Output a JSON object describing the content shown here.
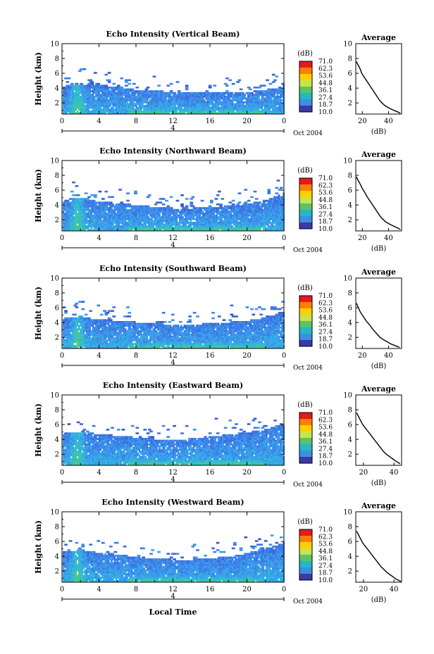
{
  "figure": {
    "footer_label": "Local Time",
    "x_ticks": [
      "0",
      "4",
      "8",
      "12",
      "16",
      "20",
      "0"
    ],
    "date_label": "Oct 2004",
    "day_marker": "4",
    "height_axis_label": "Height (km)",
    "height_ticks": [
      "2",
      "4",
      "6",
      "8",
      "10"
    ],
    "cbar_unit": "(dB)",
    "cbar_values": [
      "71.0",
      "62.3",
      "53.6",
      "44.8",
      "36.1",
      "27.4",
      "18.7",
      "10.0"
    ],
    "cbar_colors": [
      "#e41a1c",
      "#ff7f00",
      "#fed000",
      "#c7e44a",
      "#5cc26a",
      "#22b8c8",
      "#3f8fe0",
      "#3a3aa8"
    ],
    "average_title": "Average",
    "average_unit": "(dB)",
    "color_scale": [
      {
        "v": 10,
        "c": "#2a35a8"
      },
      {
        "v": 20,
        "c": "#3f6fe0"
      },
      {
        "v": 27,
        "c": "#3aa0f0"
      },
      {
        "v": 33,
        "c": "#2fc2cc"
      },
      {
        "v": 39,
        "c": "#55c96e"
      },
      {
        "v": 45,
        "c": "#b9e04c"
      },
      {
        "v": 53,
        "c": "#fed22a"
      },
      {
        "v": 62,
        "c": "#ff8a1c"
      },
      {
        "v": 71,
        "c": "#e41a1c"
      }
    ]
  },
  "chart_data": [
    {
      "type": "heatmap",
      "title": "Echo Intensity (Vertical Beam)",
      "xlabel": "",
      "ylabel": "Height (km)",
      "xlim": [
        0,
        24
      ],
      "ylim": [
        0.5,
        10
      ],
      "clim": [
        10,
        71
      ],
      "echo_top_km": [
        [
          0,
          4.4
        ],
        [
          1,
          4.6
        ],
        [
          2,
          4.7
        ],
        [
          3,
          4.5
        ],
        [
          4,
          4.5
        ],
        [
          6,
          4.3
        ],
        [
          8,
          3.9
        ],
        [
          10,
          3.8
        ],
        [
          12,
          3.6
        ],
        [
          14,
          3.5
        ],
        [
          16,
          3.6
        ],
        [
          18,
          3.5
        ],
        [
          20,
          3.6
        ],
        [
          22,
          3.9
        ],
        [
          24,
          4.5
        ]
      ],
      "average_profile": {
        "xlabel": "(dB)",
        "ylabel": "",
        "x_ticks": [
          "20",
          "40"
        ],
        "xlim": [
          15,
          50
        ],
        "ylim": [
          0.5,
          10
        ],
        "points": [
          [
            15.3,
            7.6
          ],
          [
            16.5,
            7.2
          ],
          [
            17.5,
            6.9
          ],
          [
            18.5,
            6.5
          ],
          [
            19.5,
            6.0
          ],
          [
            21.0,
            5.6
          ],
          [
            22.5,
            5.2
          ],
          [
            24.0,
            4.8
          ],
          [
            25.5,
            4.4
          ],
          [
            27.0,
            4.0
          ],
          [
            28.5,
            3.6
          ],
          [
            30.0,
            3.2
          ],
          [
            31.5,
            2.8
          ],
          [
            33.0,
            2.4
          ],
          [
            35.0,
            2.0
          ],
          [
            37.5,
            1.6
          ],
          [
            40.5,
            1.3
          ],
          [
            44.0,
            1.0
          ],
          [
            47.5,
            0.75
          ],
          [
            49.0,
            0.6
          ]
        ]
      }
    },
    {
      "type": "heatmap",
      "title": "Echo Intensity (Northward Beam)",
      "xlabel": "",
      "ylabel": "Height (km)",
      "xlim": [
        0,
        24
      ],
      "ylim": [
        0.5,
        10
      ],
      "clim": [
        10,
        71
      ],
      "echo_top_km": [
        [
          0,
          4.8
        ],
        [
          1,
          5.0
        ],
        [
          2,
          5.1
        ],
        [
          3,
          4.8
        ],
        [
          4,
          4.6
        ],
        [
          6,
          4.4
        ],
        [
          8,
          4.1
        ],
        [
          10,
          3.9
        ],
        [
          12,
          3.7
        ],
        [
          14,
          3.7
        ],
        [
          16,
          3.9
        ],
        [
          18,
          4.0
        ],
        [
          20,
          4.3
        ],
        [
          22,
          4.8
        ],
        [
          24,
          5.8
        ]
      ],
      "average_profile": {
        "xlabel": "(dB)",
        "ylabel": "",
        "x_ticks": [
          "20",
          "40"
        ],
        "xlim": [
          15,
          50
        ],
        "ylim": [
          0.5,
          10
        ],
        "points": [
          [
            15.5,
            7.8
          ],
          [
            16.5,
            7.4
          ],
          [
            17.8,
            7.0
          ],
          [
            19.0,
            6.6
          ],
          [
            20.0,
            6.2
          ],
          [
            21.5,
            5.8
          ],
          [
            23.0,
            5.3
          ],
          [
            24.5,
            4.9
          ],
          [
            26.0,
            4.5
          ],
          [
            27.5,
            4.1
          ],
          [
            29.0,
            3.7
          ],
          [
            30.5,
            3.3
          ],
          [
            32.0,
            2.9
          ],
          [
            33.5,
            2.5
          ],
          [
            35.5,
            2.1
          ],
          [
            38.0,
            1.7
          ],
          [
            41.0,
            1.4
          ],
          [
            44.5,
            1.1
          ],
          [
            47.5,
            0.85
          ],
          [
            49.0,
            0.7
          ]
        ]
      }
    },
    {
      "type": "heatmap",
      "title": "Echo Intensity (Southward Beam)",
      "xlabel": "",
      "ylabel": "Height (km)",
      "xlim": [
        0,
        24
      ],
      "ylim": [
        0.5,
        10
      ],
      "clim": [
        10,
        71
      ],
      "echo_top_km": [
        [
          0,
          4.6
        ],
        [
          1,
          4.8
        ],
        [
          2,
          5.0
        ],
        [
          3,
          4.7
        ],
        [
          4,
          4.5
        ],
        [
          6,
          4.4
        ],
        [
          8,
          4.2
        ],
        [
          10,
          4.0
        ],
        [
          12,
          3.9
        ],
        [
          14,
          3.9
        ],
        [
          16,
          4.0
        ],
        [
          18,
          4.1
        ],
        [
          20,
          4.4
        ],
        [
          22,
          4.8
        ],
        [
          24,
          5.6
        ]
      ],
      "average_profile": {
        "xlabel": "(dB)",
        "ylabel": "",
        "x_ticks": [
          "20",
          "40"
        ],
        "xlim": [
          15,
          50
        ],
        "ylim": [
          0.5,
          10
        ],
        "points": [
          [
            15.5,
            6.6
          ],
          [
            16.5,
            6.2
          ],
          [
            17.5,
            5.8
          ],
          [
            18.5,
            5.4
          ],
          [
            20.0,
            5.0
          ],
          [
            21.5,
            4.6
          ],
          [
            23.0,
            4.2
          ],
          [
            24.5,
            3.9
          ],
          [
            26.0,
            3.6
          ],
          [
            27.5,
            3.2
          ],
          [
            29.5,
            2.8
          ],
          [
            31.5,
            2.4
          ],
          [
            33.5,
            2.0
          ],
          [
            36.0,
            1.7
          ],
          [
            39.0,
            1.4
          ],
          [
            42.0,
            1.1
          ],
          [
            45.5,
            0.85
          ],
          [
            48.5,
            0.65
          ]
        ]
      }
    },
    {
      "type": "heatmap",
      "title": "Echo Intensity (Eastward Beam)",
      "xlabel": "",
      "ylabel": "Height (km)",
      "xlim": [
        0,
        24
      ],
      "ylim": [
        0.5,
        10
      ],
      "clim": [
        10,
        71
      ],
      "echo_top_km": [
        [
          0,
          4.9
        ],
        [
          1,
          5.1
        ],
        [
          2,
          5.2
        ],
        [
          3,
          5.0
        ],
        [
          4,
          4.8
        ],
        [
          6,
          4.6
        ],
        [
          8,
          4.4
        ],
        [
          10,
          4.2
        ],
        [
          12,
          4.1
        ],
        [
          14,
          4.2
        ],
        [
          16,
          4.5
        ],
        [
          18,
          4.8
        ],
        [
          20,
          5.1
        ],
        [
          22,
          5.5
        ],
        [
          24,
          6.2
        ]
      ],
      "average_profile": {
        "xlabel": "(dB)",
        "ylabel": "",
        "x_ticks": [
          "20",
          "40"
        ],
        "xlim": [
          15,
          45
        ],
        "ylim": [
          0.5,
          10
        ],
        "points": [
          [
            15.5,
            7.6
          ],
          [
            16.5,
            7.2
          ],
          [
            17.5,
            6.8
          ],
          [
            18.5,
            6.4
          ],
          [
            19.5,
            6.0
          ],
          [
            21.0,
            5.6
          ],
          [
            22.5,
            5.2
          ],
          [
            24.0,
            4.8
          ],
          [
            25.5,
            4.4
          ],
          [
            27.0,
            4.0
          ],
          [
            28.5,
            3.6
          ],
          [
            30.0,
            3.2
          ],
          [
            31.5,
            2.8
          ],
          [
            33.0,
            2.4
          ],
          [
            35.0,
            2.0
          ],
          [
            37.0,
            1.7
          ],
          [
            39.0,
            1.4
          ],
          [
            41.0,
            1.1
          ],
          [
            43.0,
            0.85
          ],
          [
            44.0,
            0.7
          ]
        ]
      }
    },
    {
      "type": "heatmap",
      "title": "Echo Intensity (Westward Beam)",
      "xlabel": "Local Time",
      "ylabel": "Height (km)",
      "xlim": [
        0,
        24
      ],
      "ylim": [
        0.5,
        10
      ],
      "clim": [
        10,
        71
      ],
      "echo_top_km": [
        [
          0,
          4.7
        ],
        [
          1,
          4.9
        ],
        [
          2,
          5.0
        ],
        [
          3,
          4.8
        ],
        [
          4,
          4.6
        ],
        [
          6,
          4.4
        ],
        [
          8,
          4.0
        ],
        [
          10,
          3.8
        ],
        [
          12,
          3.7
        ],
        [
          14,
          3.7
        ],
        [
          16,
          3.9
        ],
        [
          18,
          4.1
        ],
        [
          20,
          4.6
        ],
        [
          22,
          5.2
        ],
        [
          24,
          6.0
        ]
      ],
      "average_profile": {
        "xlabel": "(dB)",
        "ylabel": "",
        "x_ticks": [
          "20",
          "40"
        ],
        "xlim": [
          15,
          45
        ],
        "ylim": [
          0.5,
          10
        ],
        "points": [
          [
            15.5,
            7.4
          ],
          [
            16.5,
            7.0
          ],
          [
            17.5,
            6.6
          ],
          [
            18.5,
            6.2
          ],
          [
            19.5,
            5.8
          ],
          [
            21.0,
            5.4
          ],
          [
            22.5,
            5.0
          ],
          [
            24.0,
            4.6
          ],
          [
            25.5,
            4.2
          ],
          [
            27.0,
            3.8
          ],
          [
            28.5,
            3.4
          ],
          [
            30.0,
            3.0
          ],
          [
            31.5,
            2.6
          ],
          [
            33.5,
            2.2
          ],
          [
            35.5,
            1.8
          ],
          [
            37.5,
            1.5
          ],
          [
            39.5,
            1.2
          ],
          [
            41.5,
            0.9
          ],
          [
            43.5,
            0.7
          ],
          [
            44.5,
            0.6
          ]
        ]
      }
    }
  ]
}
